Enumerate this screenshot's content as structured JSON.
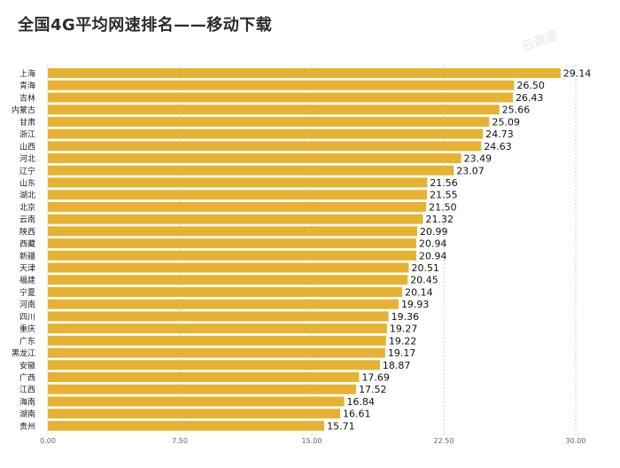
{
  "chart_data": {
    "type": "bar",
    "orientation": "horizontal",
    "title": "全国4G平均网速排名——移动下载",
    "categories": [
      "上海",
      "青海",
      "吉林",
      "内蒙古",
      "甘肃",
      "浙江",
      "山西",
      "河北",
      "辽宁",
      "山东",
      "湖北",
      "北京",
      "云南",
      "陕西",
      "西藏",
      "新疆",
      "天津",
      "福建",
      "宁夏",
      "河南",
      "四川",
      "重庆",
      "广东",
      "黑龙江",
      "安徽",
      "广西",
      "江西",
      "海南",
      "湖南",
      "贵州"
    ],
    "values": [
      29.14,
      26.5,
      26.43,
      25.66,
      25.09,
      24.73,
      24.63,
      23.49,
      23.07,
      21.56,
      21.55,
      21.5,
      21.32,
      20.99,
      20.94,
      20.94,
      20.51,
      20.45,
      20.14,
      19.93,
      19.36,
      19.27,
      19.22,
      19.17,
      18.87,
      17.69,
      17.52,
      16.84,
      16.61,
      15.71
    ],
    "value_labels": [
      "29.14",
      "26.50",
      "26.43",
      "25.66",
      "25.09",
      "24.73",
      "24.63",
      "23.49",
      "23.07",
      "21.56",
      "21.55",
      "21.50",
      "21.32",
      "20.99",
      "20.94",
      "20.94",
      "20.51",
      "20.45",
      "20.14",
      "19.93",
      "19.36",
      "19.27",
      "19.22",
      "19.17",
      "18.87",
      "17.69",
      "17.52",
      "16.84",
      "16.61",
      "15.71"
    ],
    "xlim": [
      0,
      30
    ],
    "xticks": [
      0,
      7.5,
      15,
      22.5,
      30
    ],
    "xtick_labels": [
      "0.00",
      "7.50",
      "15.00",
      "22.50",
      "30.00"
    ],
    "grid": true,
    "bar_color": "#e5b232"
  }
}
